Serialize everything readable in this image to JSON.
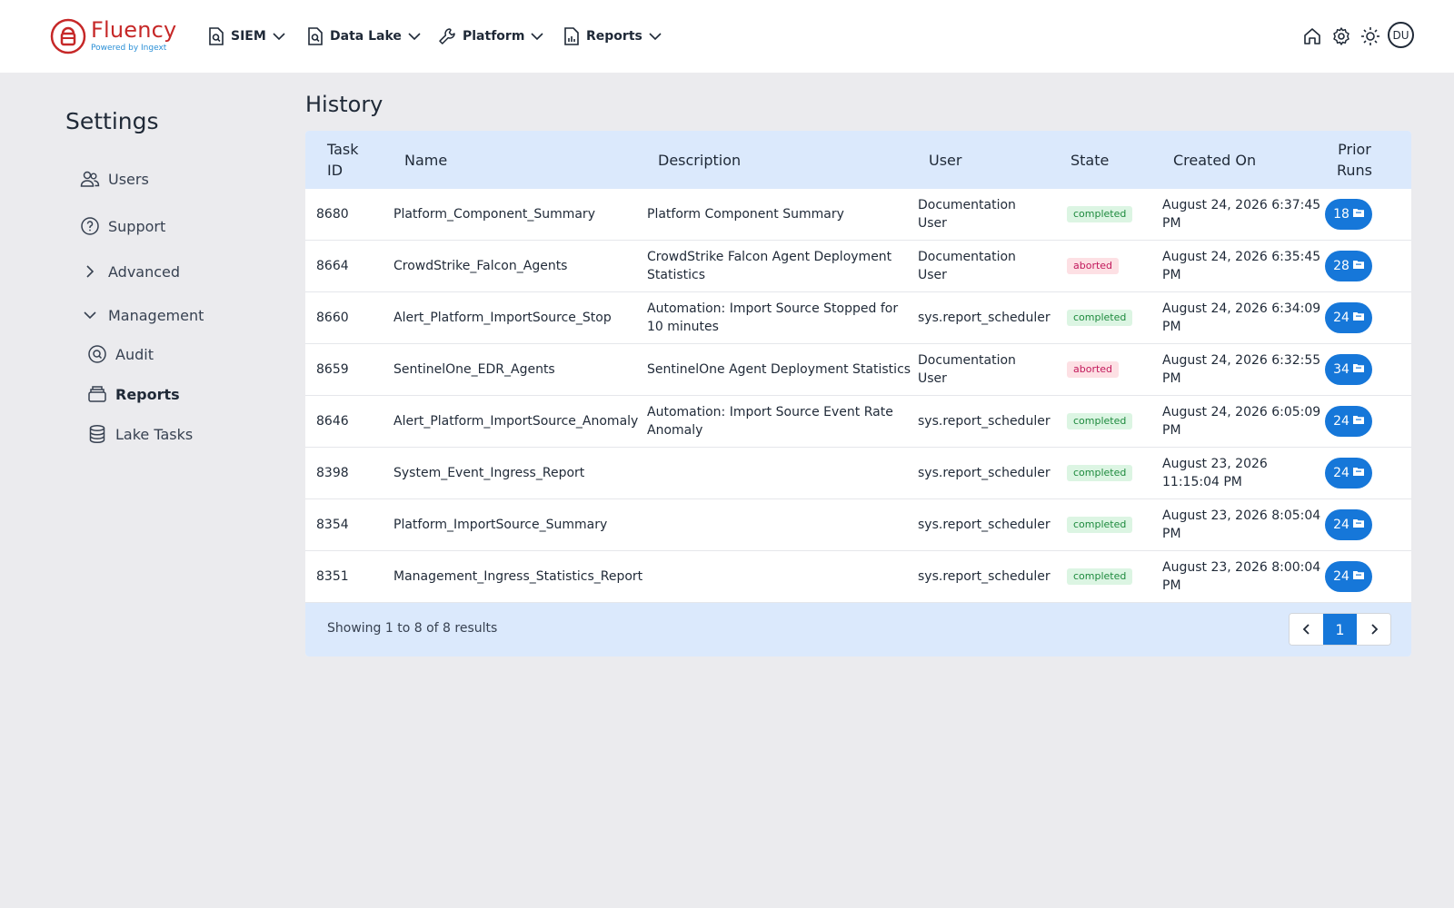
{
  "brand": {
    "name": "Fluency",
    "tagline": "Powered by Ingext"
  },
  "nav": [
    {
      "label": "SIEM",
      "icon": "search-doc-icon"
    },
    {
      "label": "Data Lake",
      "icon": "search-doc-icon"
    },
    {
      "label": "Platform",
      "icon": "wrench-icon"
    },
    {
      "label": "Reports",
      "icon": "report-icon"
    }
  ],
  "header_icons": [
    "home-icon",
    "gear-icon",
    "sun-icon"
  ],
  "avatar": "DU",
  "sidebar": {
    "title": "Settings",
    "items": [
      {
        "label": "Users",
        "icon": "users-icon"
      },
      {
        "label": "Support",
        "icon": "help-circle-icon"
      },
      {
        "label": "Advanced",
        "icon": "chevron-right-icon"
      },
      {
        "label": "Management",
        "icon": "chevron-down-icon"
      },
      {
        "label": "Audit",
        "icon": "audit-icon"
      },
      {
        "label": "Reports",
        "icon": "reports-icon"
      },
      {
        "label": "Lake Tasks",
        "icon": "database-icon"
      }
    ]
  },
  "page_title": "History",
  "table": {
    "headers": {
      "task_id": [
        "Task",
        "ID"
      ],
      "name": "Name",
      "description": "Description",
      "user": "User",
      "state": "State",
      "created": "Created On",
      "prior_runs": [
        "Prior",
        "Runs"
      ]
    },
    "rows": [
      {
        "id": "8680",
        "name": "Platform_Component_Summary",
        "desc": [
          "Platform Component Summary",
          ""
        ],
        "user": [
          "Documentation",
          "User"
        ],
        "state": "completed",
        "created": [
          "August 24, 2026 6:37:45",
          "PM"
        ],
        "runs": "18"
      },
      {
        "id": "8664",
        "name": "CrowdStrike_Falcon_Agents",
        "desc": [
          "CrowdStrike Falcon Agent Deployment",
          "Statistics"
        ],
        "user": [
          "Documentation",
          "User"
        ],
        "state": "aborted",
        "created": [
          "August 24, 2026 6:35:45",
          "PM"
        ],
        "runs": "28"
      },
      {
        "id": "8660",
        "name": "Alert_Platform_ImportSource_Stop",
        "desc": [
          "Automation: Import Source Stopped for",
          "10 minutes"
        ],
        "user": [
          "sys.report_scheduler",
          ""
        ],
        "state": "completed",
        "created": [
          "August 24, 2026 6:34:09",
          "PM"
        ],
        "runs": "24"
      },
      {
        "id": "8659",
        "name": "SentinelOne_EDR_Agents",
        "desc": [
          "SentinelOne Agent Deployment Statistics",
          ""
        ],
        "user": [
          "Documentation",
          "User"
        ],
        "state": "aborted",
        "created": [
          "August 24, 2026 6:32:55",
          "PM"
        ],
        "runs": "34"
      },
      {
        "id": "8646",
        "name": "Alert_Platform_ImportSource_Anomaly",
        "desc": [
          "Automation: Import Source Event Rate",
          "Anomaly"
        ],
        "user": [
          "sys.report_scheduler",
          ""
        ],
        "state": "completed",
        "created": [
          "August 24, 2026 6:05:09",
          "PM"
        ],
        "runs": "24"
      },
      {
        "id": "8398",
        "name": "System_Event_Ingress_Report",
        "desc": [
          "",
          ""
        ],
        "user": [
          "sys.report_scheduler",
          ""
        ],
        "state": "completed",
        "created": [
          "August 23, 2026",
          "11:15:04 PM"
        ],
        "runs": "24"
      },
      {
        "id": "8354",
        "name": "Platform_ImportSource_Summary",
        "desc": [
          "",
          ""
        ],
        "user": [
          "sys.report_scheduler",
          ""
        ],
        "state": "completed",
        "created": [
          "August 23, 2026 8:05:04",
          "PM"
        ],
        "runs": "24"
      },
      {
        "id": "8351",
        "name": "Management_Ingress_Statistics_Report",
        "desc": [
          "",
          ""
        ],
        "user": [
          "sys.report_scheduler",
          ""
        ],
        "state": "completed",
        "created": [
          "August 23, 2026 8:00:04",
          "PM"
        ],
        "runs": "24"
      }
    ]
  },
  "footer": {
    "showing": "Showing 1 to 8 of 8 results",
    "current_page": "1"
  },
  "colors": {
    "accent": "#1677d9",
    "header_bg": "#dbe9fc",
    "brand_red": "#c62828"
  }
}
